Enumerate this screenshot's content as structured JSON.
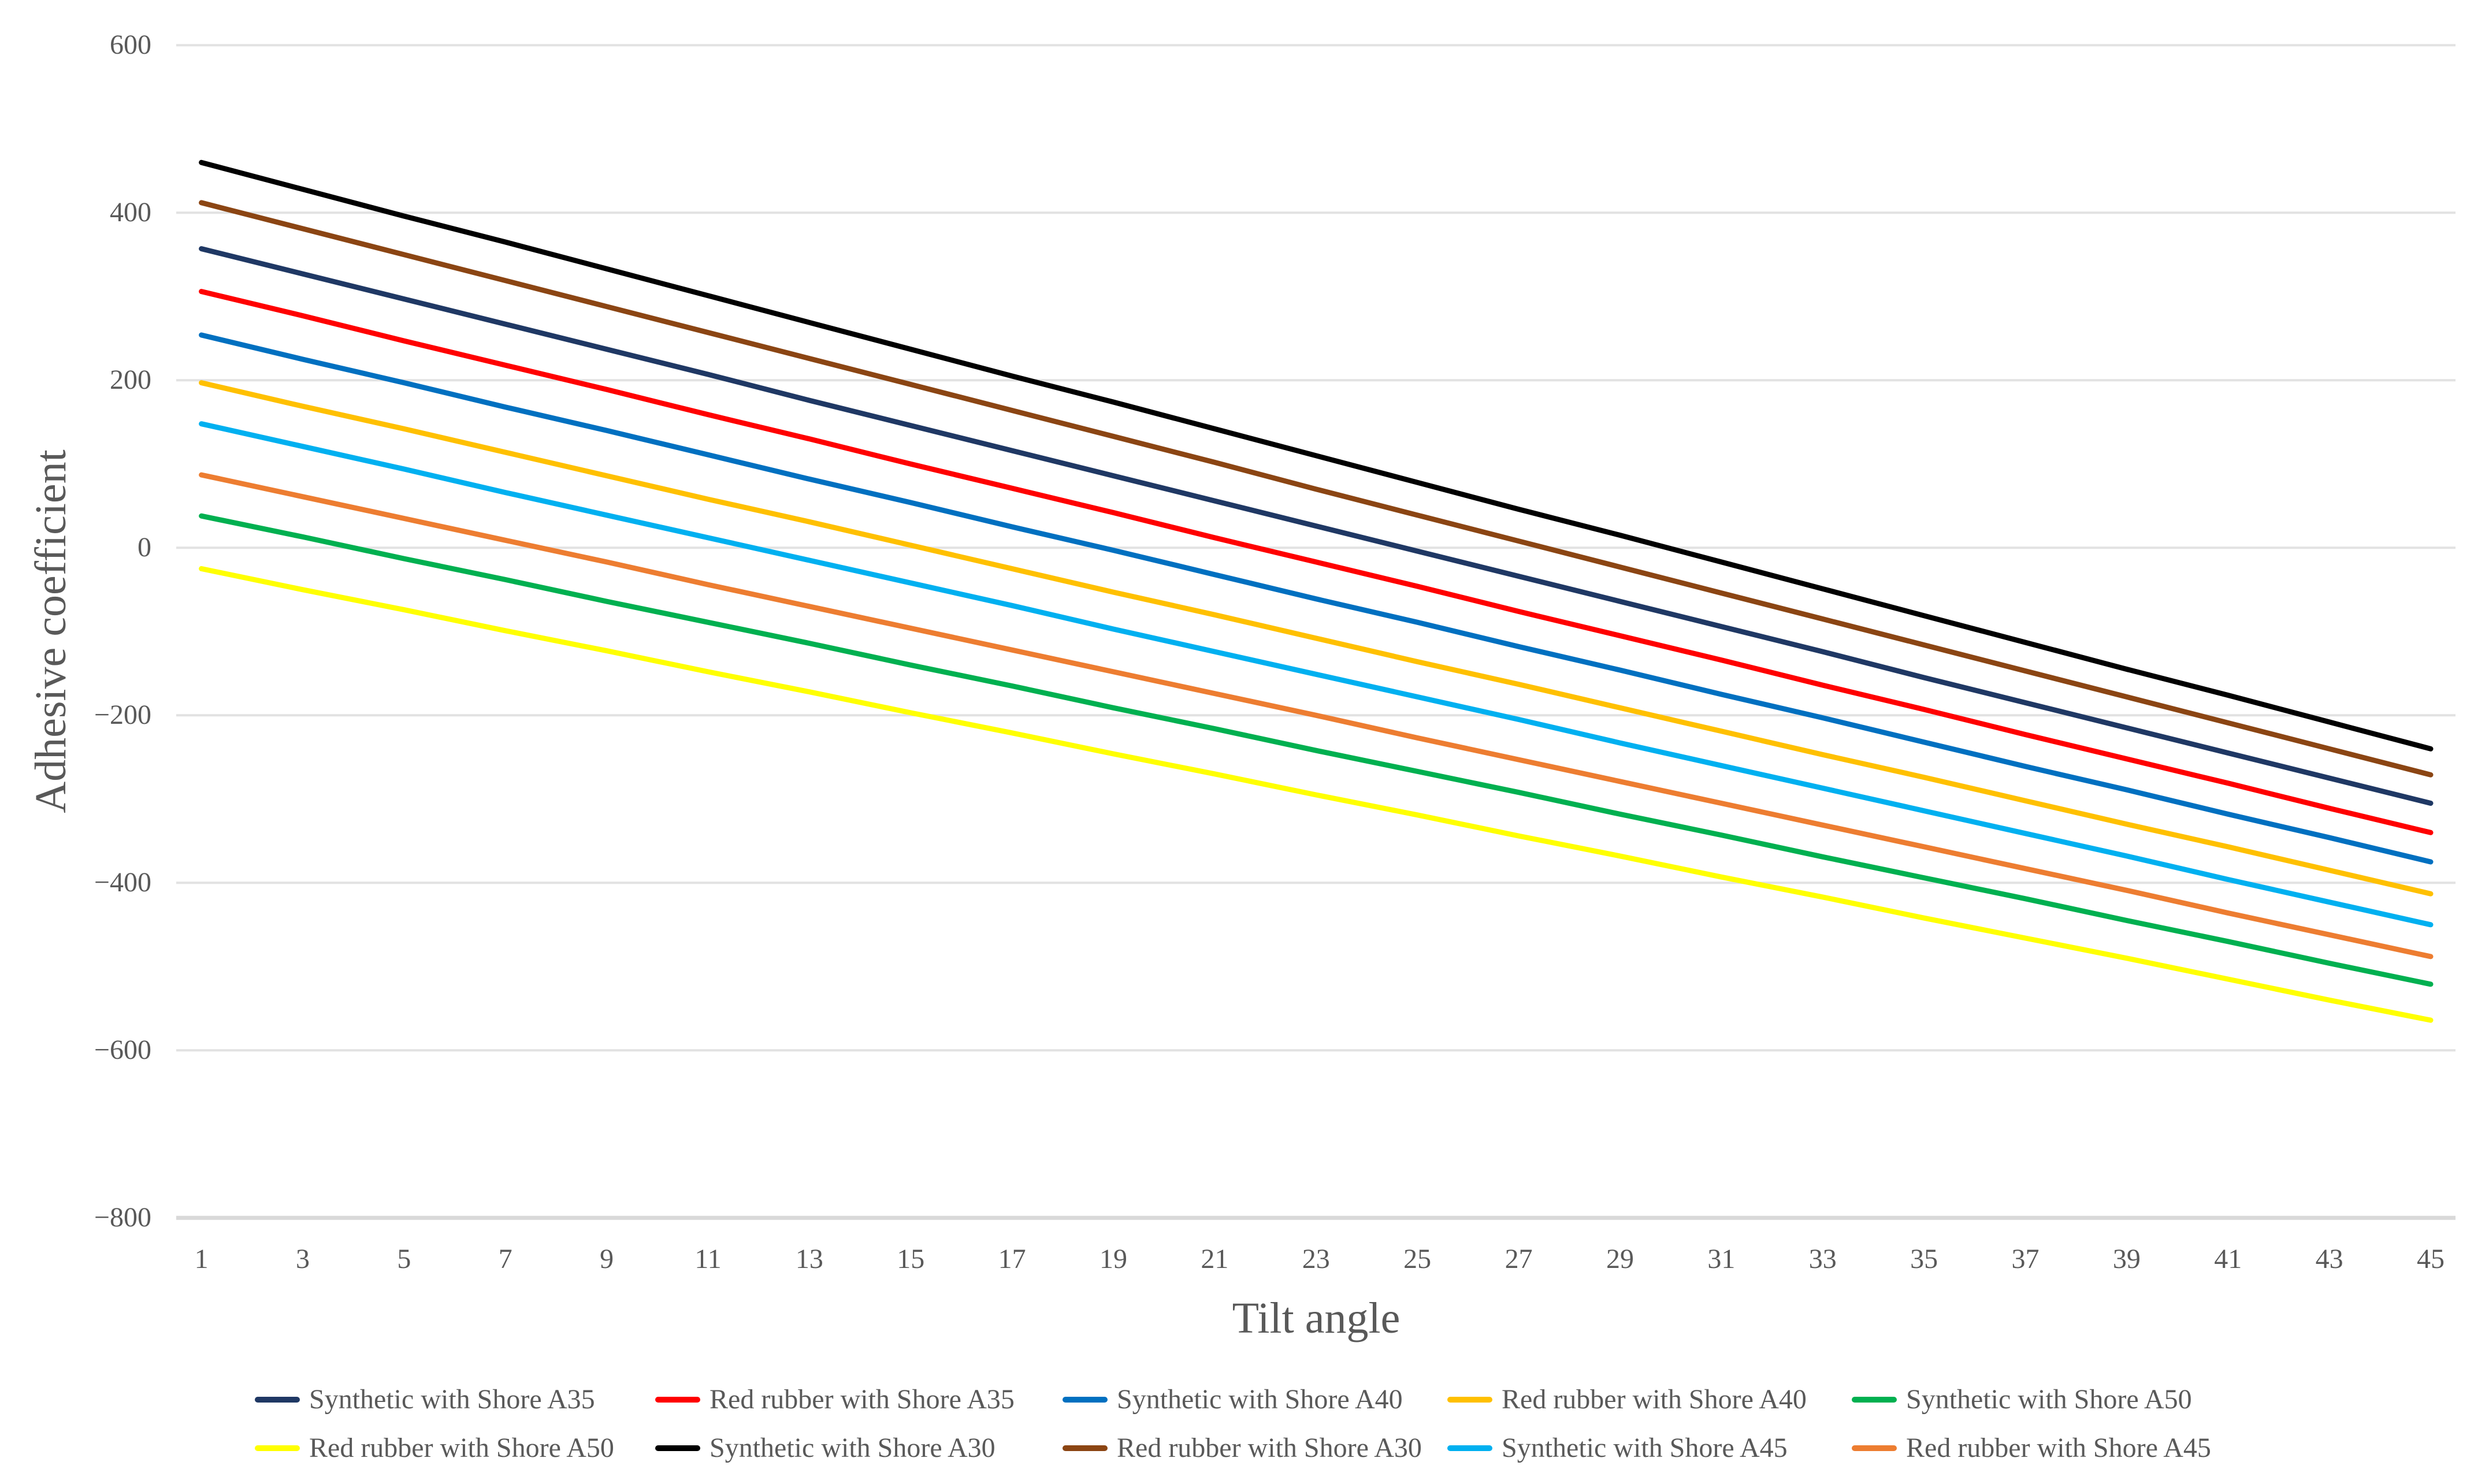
{
  "chart_data": {
    "type": "line",
    "title": "",
    "xlabel": "Tilt angle",
    "ylabel": "Adhesive coefficient",
    "x": [
      1,
      3,
      5,
      7,
      9,
      11,
      13,
      15,
      17,
      19,
      21,
      23,
      25,
      27,
      29,
      31,
      33,
      35,
      37,
      39,
      41,
      43,
      45
    ],
    "x_tick_labels": [
      "1",
      "3",
      "5",
      "7",
      "9",
      "11",
      "13",
      "15",
      "17",
      "19",
      "21",
      "23",
      "25",
      "27",
      "29",
      "31",
      "33",
      "35",
      "37",
      "39",
      "41",
      "43",
      "45"
    ],
    "y_tick_labels": [
      "600",
      "400",
      "200",
      "0",
      "−200",
      "−400",
      "−600",
      "−800"
    ],
    "y_tick_values": [
      600,
      400,
      200,
      0,
      -200,
      -400,
      -600,
      -800
    ],
    "ylim": [
      -800,
      600
    ],
    "grid": true,
    "legend_position": "bottom",
    "legend_rows": 2,
    "colors": {
      "grid": "#E2E2E2",
      "axis": "#D9D9D9",
      "text": "#595959",
      "background": "#FFFFFF"
    },
    "series": [
      {
        "name": "Synthetic with Shore A35",
        "color": "#1F3864",
        "values": [
          357,
          327,
          297,
          267,
          237,
          207,
          176,
          146,
          116,
          86,
          56,
          26,
          -4,
          -34,
          -64,
          -94,
          -124,
          -155,
          -185,
          -215,
          -245,
          -275,
          -305
        ]
      },
      {
        "name": "Red rubber with Shore A35",
        "color": "#FF0000",
        "values": [
          306,
          277,
          247,
          218,
          189,
          159,
          130,
          100,
          71,
          42,
          12,
          -17,
          -46,
          -76,
          -105,
          -134,
          -164,
          -193,
          -223,
          -252,
          -281,
          -311,
          -340
        ]
      },
      {
        "name": "Synthetic with Shore A40",
        "color": "#0070C0",
        "values": [
          254,
          225,
          197,
          168,
          140,
          111,
          82,
          54,
          25,
          -3,
          -32,
          -61,
          -89,
          -118,
          -146,
          -175,
          -203,
          -232,
          -261,
          -289,
          -318,
          -346,
          -375
        ]
      },
      {
        "name": "Red rubber with Shore A40",
        "color": "#FFC000",
        "values": [
          197,
          169,
          142,
          114,
          86,
          58,
          31,
          3,
          -25,
          -53,
          -80,
          -108,
          -136,
          -163,
          -191,
          -219,
          -247,
          -274,
          -302,
          -330,
          -357,
          -385,
          -413
        ]
      },
      {
        "name": "Synthetic with Shore A50",
        "color": "#00B050",
        "values": [
          38,
          13,
          -13,
          -38,
          -64,
          -89,
          -114,
          -140,
          -165,
          -191,
          -216,
          -242,
          -267,
          -292,
          -318,
          -343,
          -369,
          -394,
          -419,
          -445,
          -470,
          -496,
          -521
        ]
      },
      {
        "name": "Red rubber with Shore A50",
        "color": "#FFFF00",
        "values": [
          -25,
          -50,
          -74,
          -99,
          -123,
          -148,
          -172,
          -197,
          -221,
          -246,
          -270,
          -295,
          -319,
          -344,
          -368,
          -393,
          -417,
          -442,
          -466,
          -490,
          -515,
          -540,
          -564
        ]
      },
      {
        "name": "Synthetic with Shore A30",
        "color": "#000000",
        "values": [
          460,
          428,
          396,
          365,
          333,
          301,
          269,
          237,
          205,
          174,
          142,
          110,
          78,
          46,
          15,
          -17,
          -49,
          -81,
          -113,
          -145,
          -176,
          -208,
          -240
        ]
      },
      {
        "name": "Red rubber with Shore A30",
        "color": "#8B4513",
        "values": [
          412,
          381,
          350,
          319,
          288,
          257,
          226,
          195,
          164,
          133,
          102,
          70,
          39,
          8,
          -23,
          -54,
          -85,
          -116,
          -147,
          -178,
          -209,
          -240,
          -271
        ]
      },
      {
        "name": "Synthetic with Shore A45",
        "color": "#00B0F0",
        "values": [
          148,
          121,
          94,
          66,
          39,
          12,
          -15,
          -42,
          -69,
          -97,
          -124,
          -151,
          -178,
          -205,
          -233,
          -260,
          -287,
          -314,
          -341,
          -368,
          -396,
          -423,
          -450
        ]
      },
      {
        "name": "Red rubber with Shore A45",
        "color": "#ED7D31",
        "values": [
          87,
          61,
          35,
          9,
          -17,
          -44,
          -70,
          -96,
          -122,
          -148,
          -174,
          -200,
          -227,
          -253,
          -279,
          -305,
          -331,
          -357,
          -383,
          -409,
          -436,
          -462,
          -488
        ]
      }
    ]
  }
}
